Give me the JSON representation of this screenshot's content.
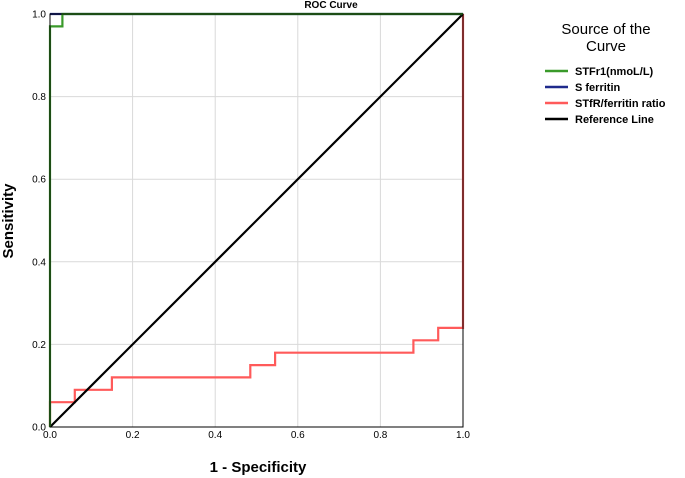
{
  "chart_data": {
    "type": "line",
    "title": "ROC Curve",
    "xlabel": "1 - Specificity",
    "ylabel": "Sensitivity",
    "xlim": [
      0,
      1
    ],
    "ylim": [
      0,
      1
    ],
    "x_ticks": [
      "0.0",
      "0.2",
      "0.4",
      "0.6",
      "0.8",
      "1.0"
    ],
    "y_ticks": [
      "0.0",
      "0.2",
      "0.4",
      "0.6",
      "0.8",
      "1.0"
    ],
    "grid": true,
    "legend": {
      "title_lines": [
        "Source of the",
        "Curve"
      ],
      "position": "right"
    },
    "series": [
      {
        "name": "S ferritin",
        "color": "#1f2a8c",
        "points": [
          [
            0,
            1
          ],
          [
            0.03,
            1
          ],
          [
            1,
            1
          ]
        ]
      },
      {
        "name": "STfR/ferritin ratio",
        "color": "#ff5a5a",
        "points": [
          [
            0,
            0
          ],
          [
            0,
            0.06
          ],
          [
            0.06,
            0.06
          ],
          [
            0.06,
            0.09
          ],
          [
            0.15,
            0.09
          ],
          [
            0.15,
            0.12
          ],
          [
            0.485,
            0.12
          ],
          [
            0.485,
            0.15
          ],
          [
            0.545,
            0.15
          ],
          [
            0.545,
            0.18
          ],
          [
            0.88,
            0.18
          ],
          [
            0.88,
            0.21
          ],
          [
            0.94,
            0.21
          ],
          [
            0.94,
            0.24
          ],
          [
            1,
            0.24
          ],
          [
            1,
            1
          ]
        ]
      },
      {
        "name": "Reference Line",
        "color": "#000000",
        "points": [
          [
            0,
            0
          ],
          [
            1,
            1
          ]
        ]
      },
      {
        "name": "STFr1(nmoL/L)",
        "color": "#3a9a2a",
        "points": [
          [
            0,
            0
          ],
          [
            0,
            0.97
          ],
          [
            0.03,
            0.97
          ],
          [
            0.03,
            1
          ],
          [
            1,
            1
          ]
        ]
      }
    ],
    "legend_order": [
      "STFr1(nmoL/L)",
      "S ferritin",
      "STfR/ferritin ratio",
      "Reference Line"
    ]
  }
}
